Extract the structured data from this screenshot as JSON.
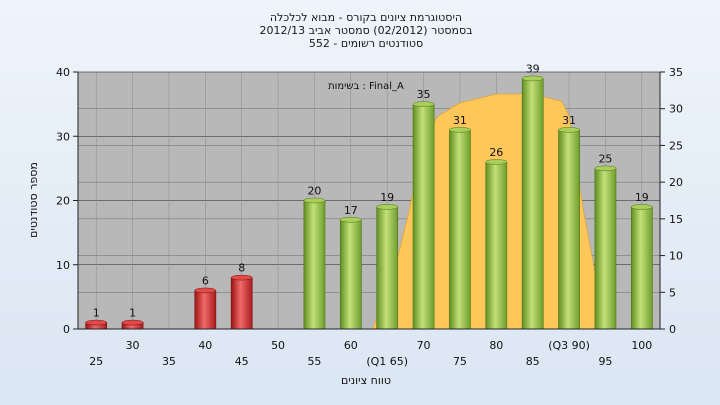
{
  "chart_data": {
    "type": "bar",
    "title_lines": [
      "היסטוגרמת ציונים בקורס - מבוא לכלכלה",
      "בסמסטר  (02/2012)  סמסטר אביב 2012/13",
      "סטודנטים רשומים - 552"
    ],
    "ylabel": "מספר סטודנטים",
    "xlabel": "טווח ציונים",
    "annotation": "בשימות : Final_A",
    "categories": [
      25,
      30,
      35,
      40,
      45,
      50,
      55,
      60,
      65,
      70,
      75,
      80,
      85,
      90,
      95,
      100
    ],
    "x_tick_labels": [
      "25",
      "30",
      "35",
      "40",
      "45",
      "50",
      "55",
      "60",
      "(Q1 65)",
      "70",
      "75",
      "80",
      "85",
      "(Q3 90)",
      "95",
      "100"
    ],
    "values": [
      1,
      1,
      0,
      6,
      8,
      0,
      20,
      17,
      19,
      35,
      31,
      26,
      39,
      31,
      25,
      19
    ],
    "bar_colors": [
      "#cc2b2b",
      "#cc2b2b",
      "#cc2b2b",
      "#cc2b2b",
      "#cc2b2b",
      "#cc2b2b",
      "#7fb03a",
      "#7fb03a",
      "#7fb03a",
      "#7fb03a",
      "#7fb03a",
      "#7fb03a",
      "#7fb03a",
      "#7fb03a",
      "#7fb03a",
      "#7fb03a"
    ],
    "ylim_left": [
      0,
      40
    ],
    "yticks_left": [
      0,
      10,
      20,
      30,
      40
    ],
    "ylim_right": [
      0,
      35
    ],
    "yticks_right": [
      0,
      5,
      10,
      15,
      20,
      25,
      30,
      35
    ],
    "area_series": {
      "x": [
        63,
        66,
        68,
        70,
        72,
        75,
        80,
        85,
        89,
        90,
        92,
        95
      ],
      "y": [
        0,
        8,
        16,
        26,
        29,
        30.8,
        32,
        32,
        31,
        29,
        16,
        0
      ],
      "color": "#ffc65a"
    },
    "grid": true,
    "plot_background": "#b8b8b8"
  }
}
